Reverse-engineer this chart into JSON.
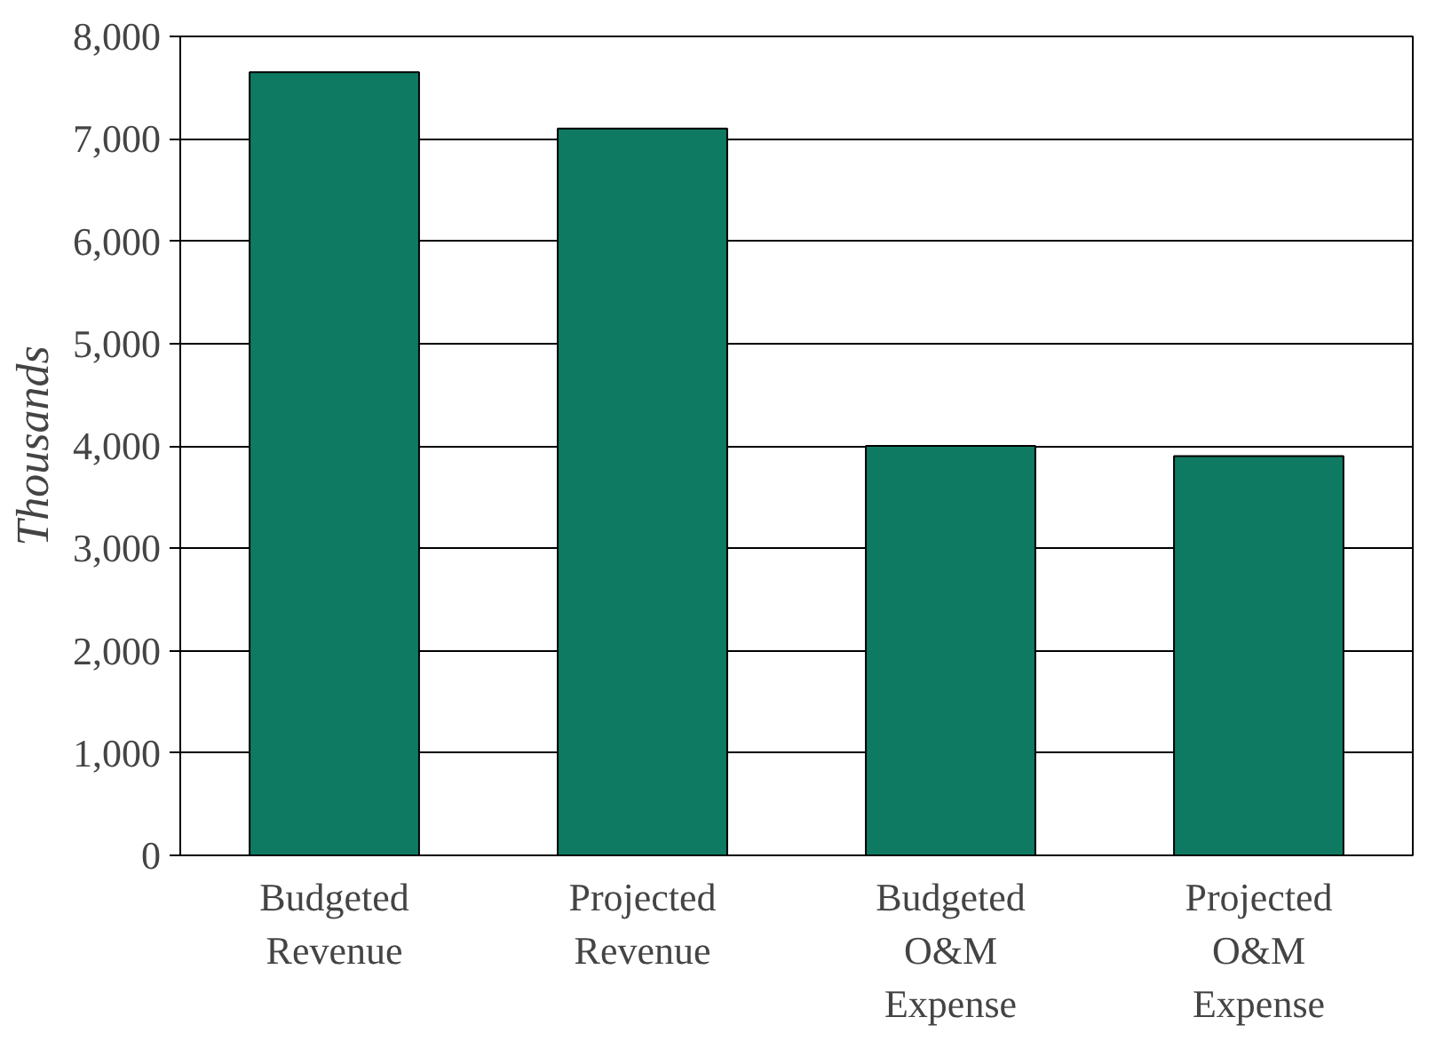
{
  "chart_data": {
    "type": "bar",
    "ylabel": "Thousands",
    "categories": [
      "Budgeted\nRevenue",
      "Projected\nRevenue",
      "Budgeted\nO&M\nExpense",
      "Projected\nO&M\nExpense"
    ],
    "values": [
      7650,
      7100,
      4000,
      3900
    ],
    "color": "#0f7a62",
    "ylim": [
      0,
      8000
    ],
    "yticks": [
      {
        "value": 0,
        "label": "0"
      },
      {
        "value": 1000,
        "label": "1,000"
      },
      {
        "value": 2000,
        "label": "2,000"
      },
      {
        "value": 3000,
        "label": "3,000"
      },
      {
        "value": 4000,
        "label": "4,000"
      },
      {
        "value": 5000,
        "label": "5,000"
      },
      {
        "value": 6000,
        "label": "6,000"
      },
      {
        "value": 7000,
        "label": "7,000"
      },
      {
        "value": 8000,
        "label": "8,000"
      }
    ],
    "grid": "y"
  }
}
